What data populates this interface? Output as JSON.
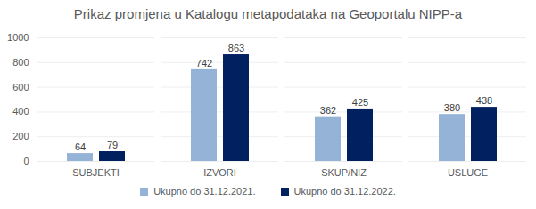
{
  "chart_data": {
    "type": "bar",
    "title": "Prikaz promjena u Katalogu metapodataka na Geoportalu NIPP-a",
    "categories": [
      "SUBJEKTI",
      "IZVORI",
      "SKUP/NIZ",
      "USLUGE"
    ],
    "series": [
      {
        "name": "Ukupno do 31.12.2021.",
        "color": "#95b3d7",
        "values": [
          64,
          742,
          362,
          380
        ]
      },
      {
        "name": "Ukupno do 31.12.2022.",
        "color": "#002060",
        "values": [
          79,
          863,
          425,
          438
        ]
      }
    ],
    "ylim": [
      0,
      1000
    ],
    "yticks": [
      0,
      200,
      400,
      600,
      800,
      1000
    ],
    "grid": true,
    "data_labels": true,
    "legend": "bottom"
  }
}
